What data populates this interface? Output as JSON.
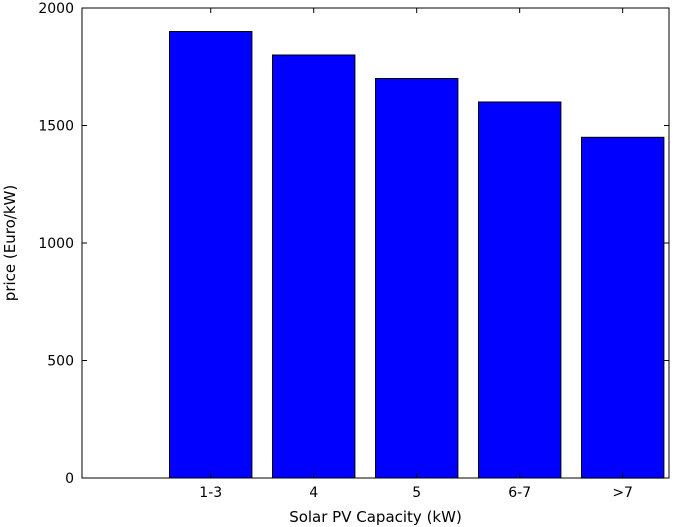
{
  "chart_data": {
    "type": "bar",
    "title": "",
    "xlabel": "Solar PV Capacity (kW)",
    "ylabel": "price (Euro/kW)",
    "categories": [
      "1-3",
      "4",
      "5",
      "6-7",
      ">7"
    ],
    "values": [
      1900,
      1800,
      1700,
      1600,
      1450
    ],
    "ylim": [
      0,
      2000
    ],
    "yticks": [
      "0",
      "500",
      "1000",
      "1500",
      "2000"
    ],
    "grid": false,
    "legend": "none",
    "bar_color": "#0000ff",
    "bar_edge_color": "#000000"
  }
}
